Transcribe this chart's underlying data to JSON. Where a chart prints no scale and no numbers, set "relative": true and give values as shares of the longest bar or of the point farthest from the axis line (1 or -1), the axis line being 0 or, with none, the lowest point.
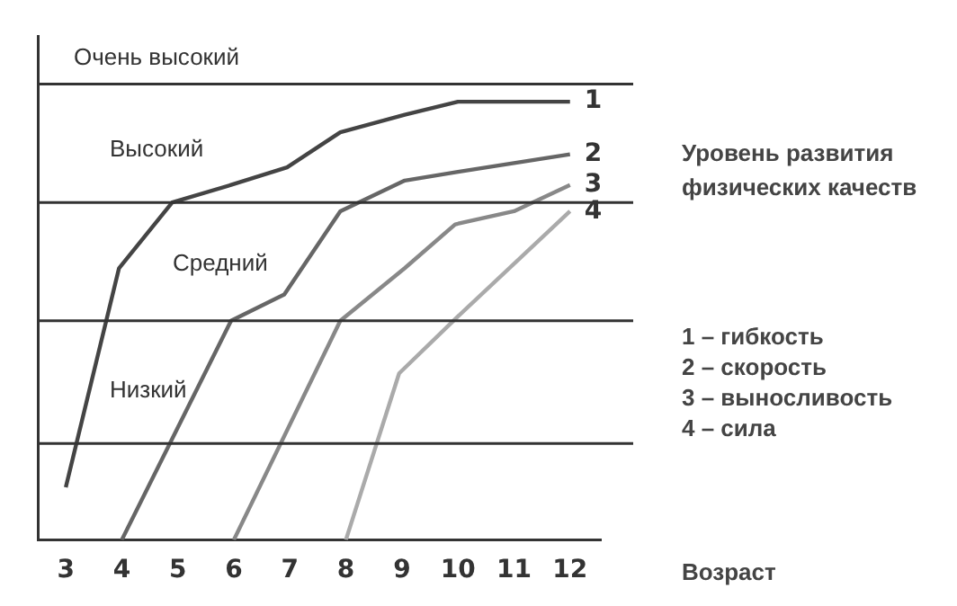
{
  "chart_data": {
    "type": "line",
    "title": "Уровень развития физических качеств",
    "xlabel": "Возраст",
    "relative": true,
    "xlim": [
      2.5,
      12.55
    ],
    "xticks": [
      3,
      4,
      5,
      6,
      7,
      8,
      9,
      10,
      11,
      12
    ],
    "series": [
      {
        "name": "1",
        "color": "#444444",
        "x": [
          3,
          3.95,
          4.9,
          5.95,
          6.95,
          7.9,
          9.05,
          10,
          12
        ],
        "values": [
          0.12,
          0.62,
          0.77,
          0.81,
          0.85,
          0.93,
          0.97,
          1,
          1
        ]
      },
      {
        "name": "2",
        "color": "#666666",
        "x": [
          4,
          5.95,
          6.9,
          7.9,
          9.05,
          10,
          11,
          12
        ],
        "values": [
          0,
          0.5,
          0.56,
          0.75,
          0.82,
          0.84,
          0.86,
          0.88
        ]
      },
      {
        "name": "3",
        "color": "#888888",
        "x": [
          6,
          7.9,
          9.05,
          9.95,
          11,
          12
        ],
        "values": [
          0,
          0.5,
          0.62,
          0.72,
          0.75,
          0.81
        ]
      },
      {
        "name": "4",
        "color": "#aaaaaa",
        "x": [
          8,
          8.95,
          10,
          12
        ],
        "values": [
          0,
          0.38,
          0.51,
          0.75
        ]
      }
    ],
    "ref_lines": [
      {
        "axis": "y",
        "value": 0.22
      },
      {
        "axis": "y",
        "value": 0.5
      },
      {
        "axis": "y",
        "value": 0.77
      },
      {
        "axis": "y",
        "value": 1.04
      }
    ],
    "annotations": [
      "Низкий",
      "Средний",
      "Высокий",
      "Очень высокий",
      "1 – гибкость",
      "2 – скорость",
      "3 – выносливость",
      "4 – сила"
    ],
    "grid": false,
    "legend": false,
    "marker": "none",
    "line_style": "solid"
  }
}
